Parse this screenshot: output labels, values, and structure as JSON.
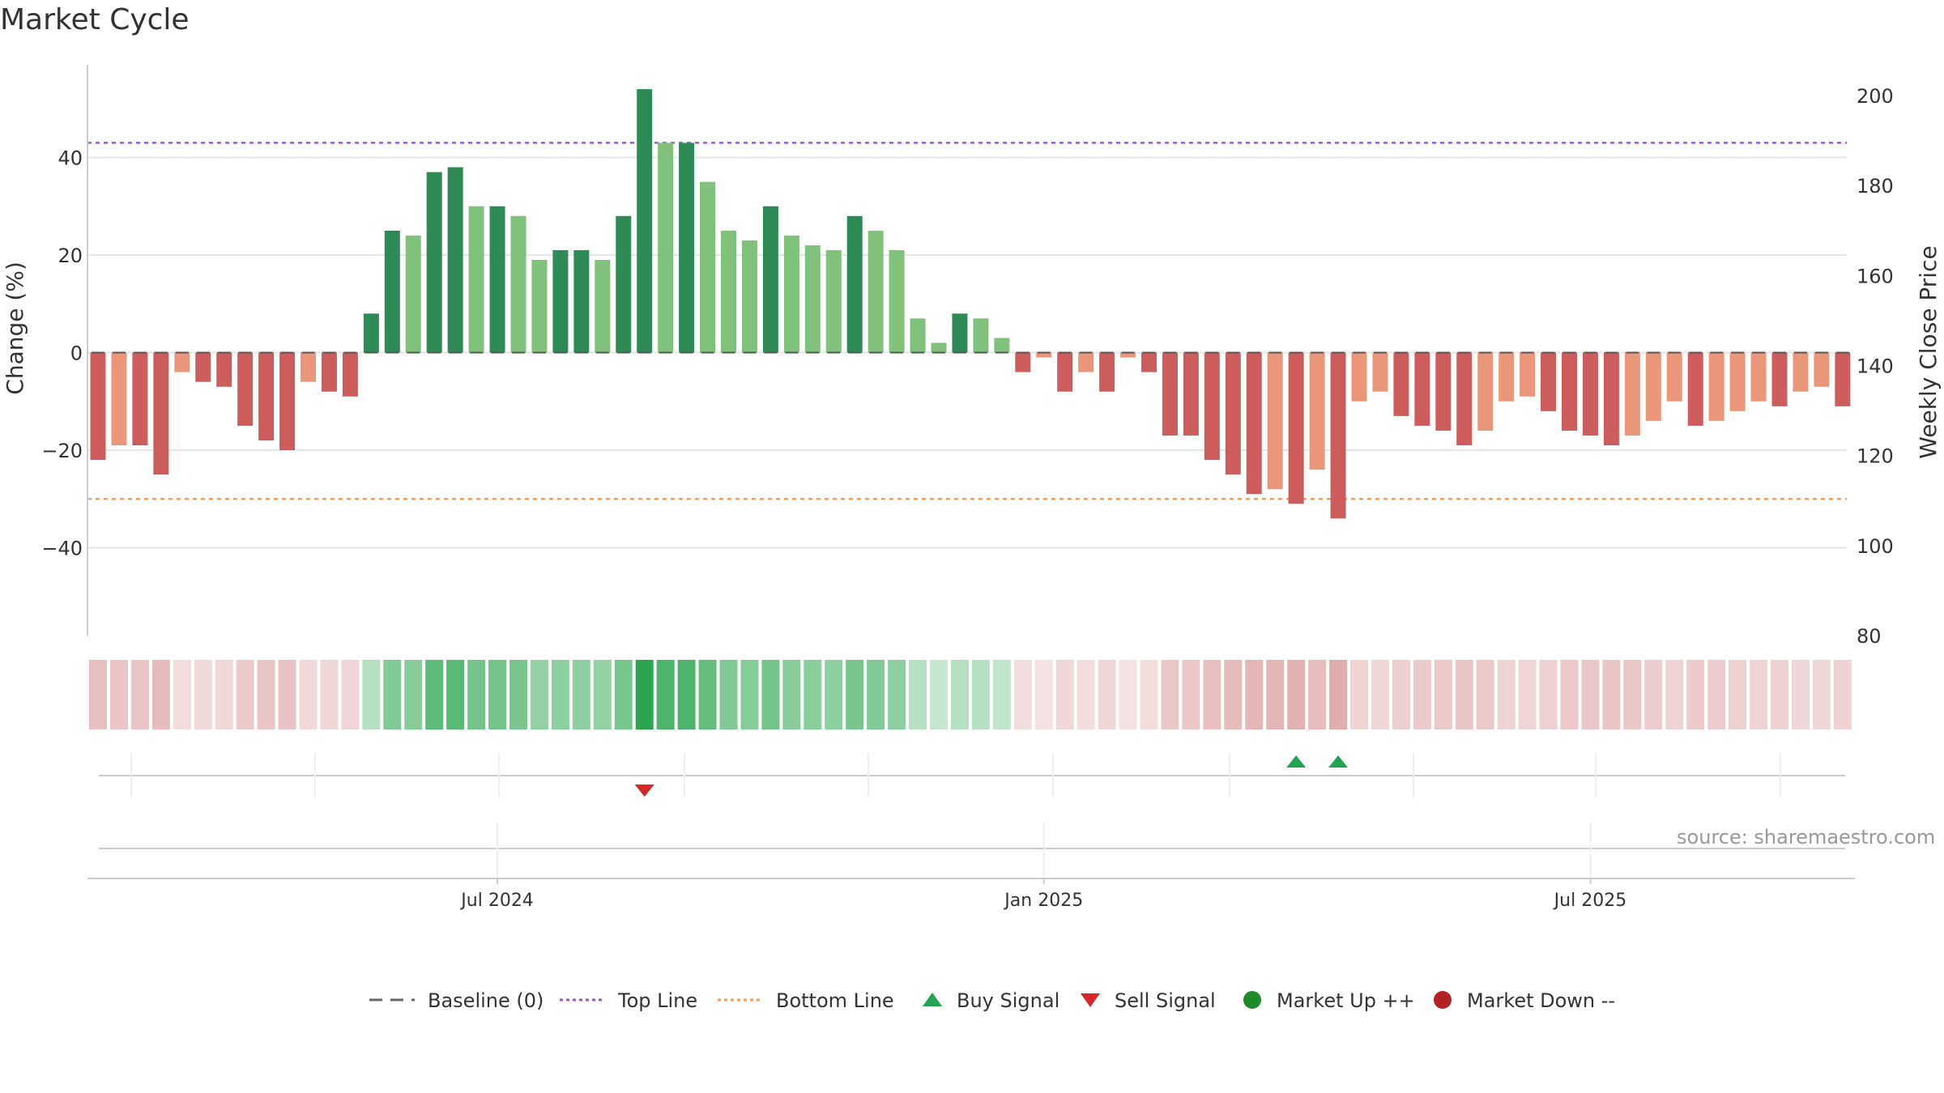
{
  "chart_data": {
    "type": "bar",
    "title": "Market Cycle",
    "ylabel_left": "Change (%)",
    "ylabel_right": "Weekly Close Price",
    "yticks_left": [
      "40",
      "20",
      "0",
      "−20",
      "−40"
    ],
    "yticks_right": [
      "200",
      "180",
      "160",
      "140",
      "120",
      "100",
      "80"
    ],
    "ylim_left": [
      -58,
      59
    ],
    "ylim_right": [
      80,
      200
    ],
    "top_line": 43,
    "bottom_line": -30,
    "x_tick_labels": [
      "Jul 2024",
      "Jan 2025",
      "Jul 2025"
    ],
    "x_tick_indices": [
      19,
      45,
      71
    ],
    "grid": true,
    "values": [
      -22,
      -19,
      -19,
      -25,
      -4,
      -6,
      -7,
      -15,
      -18,
      -20,
      -6,
      -8,
      -9,
      8,
      25,
      24,
      37,
      38,
      30,
      30,
      28,
      19,
      21,
      21,
      19,
      28,
      54,
      43,
      43,
      35,
      25,
      23,
      30,
      24,
      22,
      21,
      28,
      25,
      21,
      7,
      2,
      8,
      7,
      3,
      -4,
      -1,
      -8,
      -4,
      -8,
      -1,
      -4,
      -17,
      -17,
      -22,
      -25,
      -29,
      -28,
      -31,
      -24,
      -34,
      -10,
      -8,
      -13,
      -15,
      -16,
      -19,
      -16,
      -10,
      -9,
      -12,
      -16,
      -17,
      -19,
      -17,
      -14,
      -10,
      -15,
      -14,
      -12,
      -10,
      -11,
      -8,
      -7,
      -11
    ],
    "buy_signal_indices": [
      57,
      59
    ],
    "sell_signal_indices": [
      26
    ],
    "legend": {
      "placement": "bottom",
      "entries": [
        {
          "label": "Baseline (0)",
          "color": "#666666",
          "style": "dash"
        },
        {
          "label": "Top Line",
          "color": "#9b59d0",
          "style": "dot"
        },
        {
          "label": "Bottom Line",
          "color": "#f0a060",
          "style": "dot"
        },
        {
          "label": "Buy Signal",
          "color": "#22a352",
          "style": "triangle-up"
        },
        {
          "label": "Sell Signal",
          "color": "#d62728",
          "style": "triangle-down"
        },
        {
          "label": "Market Up ++",
          "color": "#1f8a2a",
          "style": "circle"
        },
        {
          "label": "Market Down --",
          "color": "#b22222",
          "style": "circle"
        }
      ]
    },
    "colors": {
      "strong_up": "#2e8b57",
      "up": "#80c17b",
      "strong_down": "#cd5c5c",
      "down": "#e9967a",
      "top_line": "#9b59d0",
      "bottom_line": "#f0a060"
    }
  },
  "source_text": "source: sharemaestro.com"
}
